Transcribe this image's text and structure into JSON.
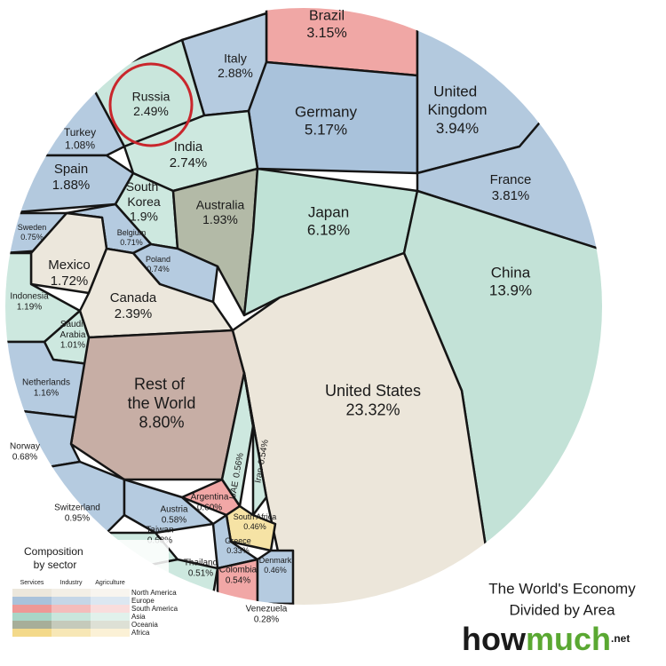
{
  "chart_data": {
    "type": "voronoi_treemap",
    "categories": [
      "Brazil",
      "Italy",
      "Russia",
      "Germany",
      "United Kingdom",
      "Turkey",
      "India",
      "Spain",
      "France",
      "South Korea",
      "Australia",
      "Japan",
      "Sweden",
      "Belgium",
      "Mexico",
      "Poland",
      "China",
      "Indonesia",
      "Canada",
      "Saudi Arabia",
      "Netherlands",
      "Rest of the World",
      "United States",
      "Norway",
      "UAE",
      "Iran",
      "Argentina",
      "Switzerland",
      "Austria",
      "South Africa",
      "Taiwan",
      "Greece",
      "Thailand",
      "Colombia",
      "Denmark",
      "Venezuela"
    ],
    "values": [
      3.15,
      2.88,
      2.49,
      5.17,
      3.94,
      1.08,
      2.74,
      1.88,
      3.81,
      1.9,
      1.93,
      6.18,
      0.75,
      0.71,
      1.72,
      0.74,
      13.9,
      1.19,
      2.39,
      1.01,
      1.16,
      8.8,
      23.32,
      0.68,
      0.56,
      0.54,
      0.6,
      0.95,
      0.58,
      0.46,
      0.68,
      0.33,
      0.51,
      0.54,
      0.46,
      0.28
    ],
    "value_labels": [
      "3.15%",
      "2.88%",
      "2.49%",
      "5.17%",
      "3.94%",
      "1.08%",
      "2.74%",
      "1.88%",
      "3.81%",
      "1.9%",
      "1.93%",
      "6.18%",
      "0.75%",
      "0.71%",
      "1.72%",
      "0.74%",
      "13.9%",
      "1.19%",
      "2.39%",
      "1.01%",
      "1.16%",
      "8.80%",
      "23.32%",
      "0.68%",
      "0.56%",
      "0.54%",
      "0.60%",
      "0.95%",
      "0.58%",
      "0.46%",
      "0.68%",
      "0.33%",
      "0.51%",
      "0.54%",
      "0.46%",
      "0.28%"
    ],
    "colors": [
      "#f0a7a5",
      "#b5cbe0",
      "#c9e6dc",
      "#a9c2db",
      "#b3c9de",
      "#b5cbe0",
      "#cde8df",
      "#b3c9de",
      "#b3c9de",
      "#cde8df",
      "#b3baa7",
      "#bfe2d6",
      "#b5cbe0",
      "#b5cbe0",
      "#ece7dc",
      "#b5cbe0",
      "#c3e2d7",
      "#cde8df",
      "#ece7dc",
      "#cde8df",
      "#b5cbe0",
      "#c7aea5",
      "#ece6da",
      "#b5cbe0",
      "#cde8df",
      "#cde8df",
      "#f1a7a6",
      "#b5cbe0",
      "#b5cbe0",
      "#f6e3a5",
      "#cde8df",
      "#b5cbe0",
      "#cde8df",
      "#f1a7a6",
      "#b5cbe0",
      "#f1a7a6"
    ],
    "legend": {
      "title": "Composition by sector",
      "sectors": [
        "Services",
        "Industry",
        "Agriculture"
      ],
      "regions": [
        {
          "name": "North America",
          "colors": [
            "#ece7dc",
            "#f3efe6",
            "#f8f5ef"
          ]
        },
        {
          "name": "Europe",
          "colors": [
            "#a9c2db",
            "#c5d6e7",
            "#dce7f1"
          ]
        },
        {
          "name": "South America",
          "colors": [
            "#ee9896",
            "#f4bcbb",
            "#f9dddc"
          ]
        },
        {
          "name": "Asia",
          "colors": [
            "#a9d6c7",
            "#c9e6dc",
            "#e1f1eb"
          ]
        },
        {
          "name": "Oceania",
          "colors": [
            "#a7ae99",
            "#c5cabb",
            "#dde0d5"
          ]
        },
        {
          "name": "Africa",
          "colors": [
            "#f3d98a",
            "#f7e7b6",
            "#fbf1d6"
          ]
        }
      ]
    },
    "title": [
      "The World's Economy",
      "Divided by Area"
    ],
    "brand": [
      "how",
      "much",
      ".net"
    ]
  }
}
